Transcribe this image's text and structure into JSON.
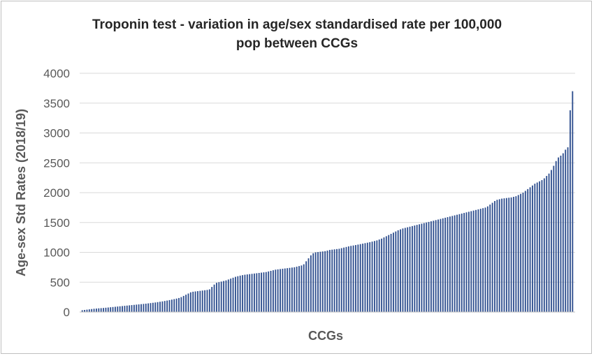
{
  "chart_data": {
    "type": "bar",
    "title_lines": [
      "Troponin test - variation in age/sex standardised rate per 100,000",
      "pop between CCGs"
    ],
    "xlabel": "CCGs",
    "ylabel": "Age-sex Std Rates (2018/19)",
    "ylim": [
      0,
      4000
    ],
    "yticks": [
      "0",
      "500",
      "1000",
      "1500",
      "2000",
      "2500",
      "3000",
      "3500",
      "4000"
    ],
    "grid": true,
    "legend": "none",
    "bar_color": "#2f4f8f",
    "values": [
      30,
      35,
      40,
      45,
      50,
      55,
      58,
      62,
      65,
      68,
      72,
      76,
      80,
      84,
      88,
      92,
      96,
      100,
      104,
      108,
      112,
      116,
      120,
      124,
      128,
      132,
      136,
      140,
      145,
      150,
      155,
      160,
      166,
      172,
      178,
      185,
      192,
      200,
      208,
      216,
      225,
      235,
      250,
      270,
      290,
      310,
      330,
      340,
      345,
      350,
      355,
      360,
      365,
      370,
      380,
      420,
      460,
      490,
      500,
      510,
      520,
      530,
      545,
      560,
      575,
      590,
      600,
      610,
      618,
      625,
      630,
      635,
      640,
      645,
      650,
      655,
      660,
      665,
      670,
      680,
      690,
      700,
      710,
      715,
      720,
      725,
      730,
      735,
      740,
      745,
      750,
      760,
      770,
      780,
      800,
      850,
      900,
      950,
      985,
      1000,
      1005,
      1010,
      1015,
      1020,
      1030,
      1040,
      1045,
      1050,
      1055,
      1060,
      1070,
      1080,
      1090,
      1100,
      1108,
      1115,
      1122,
      1130,
      1138,
      1146,
      1154,
      1162,
      1170,
      1180,
      1190,
      1200,
      1215,
      1230,
      1250,
      1270,
      1290,
      1310,
      1330,
      1350,
      1370,
      1385,
      1400,
      1410,
      1420,
      1430,
      1440,
      1450,
      1460,
      1470,
      1480,
      1490,
      1500,
      1510,
      1520,
      1530,
      1540,
      1550,
      1560,
      1570,
      1580,
      1590,
      1600,
      1610,
      1620,
      1630,
      1640,
      1650,
      1660,
      1670,
      1680,
      1690,
      1700,
      1710,
      1720,
      1730,
      1740,
      1750,
      1770,
      1800,
      1830,
      1860,
      1880,
      1890,
      1900,
      1905,
      1910,
      1915,
      1920,
      1930,
      1940,
      1960,
      1980,
      2000,
      2030,
      2060,
      2090,
      2120,
      2150,
      2170,
      2190,
      2210,
      2240,
      2280,
      2320,
      2380,
      2450,
      2530,
      2590,
      2620,
      2660,
      2720,
      2760,
      3380,
      3700
    ]
  }
}
